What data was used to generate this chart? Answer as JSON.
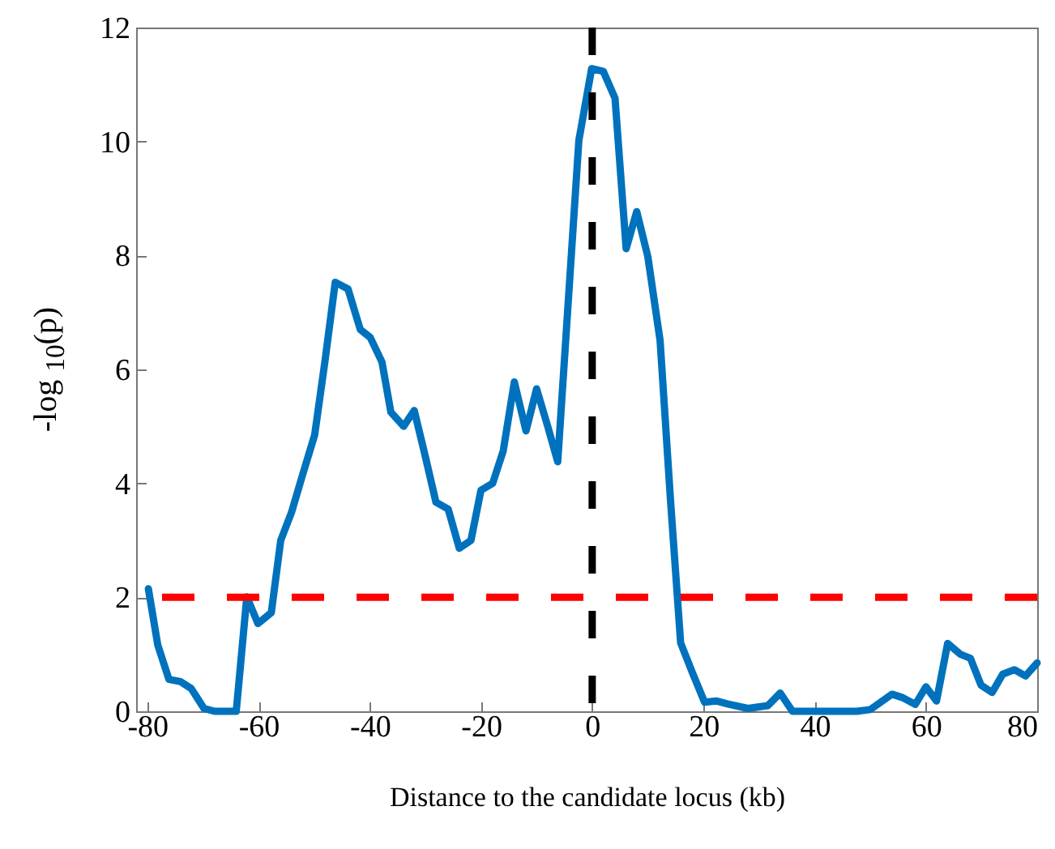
{
  "chart_data": {
    "type": "line",
    "xlabel": "Distance to the candidate locus (kb)",
    "ylabel": "-log $_{10}$(p)",
    "xlim": [
      -82,
      80
    ],
    "xticks": [
      -80,
      -60,
      -40,
      -20,
      0,
      20,
      40,
      60,
      80
    ],
    "ylim": [
      0,
      12
    ],
    "yticks": [
      0,
      2,
      4,
      6,
      8,
      10,
      12
    ],
    "grid": false,
    "marker": "none",
    "line_style": "solid",
    "x": [
      -79.8,
      -78.1,
      -76.1,
      -74.0,
      -72.1,
      -69.8,
      -67.9,
      -64.0,
      -62.1,
      -60.1,
      -57.7,
      -56.0,
      -54.1,
      -52.1,
      -49.9,
      -48.0,
      -46.2,
      -43.9,
      -41.7,
      -39.9,
      -37.8,
      -36.2,
      -33.9,
      -32.0,
      -30.0,
      -28.1,
      -25.9,
      -23.9,
      -21.8,
      -20.0,
      -17.9,
      -16.0,
      -14.0,
      -11.9,
      -10.0,
      -8.0,
      -6.2,
      -2.4,
      -0.1,
      2.0,
      4.1,
      6.1,
      8.0,
      10.0,
      12.2,
      14.1,
      15.9,
      18.0,
      20.2,
      22.4,
      24.3,
      28.0,
      31.6,
      33.8,
      36.0,
      40.0,
      47.6,
      50.0,
      53.9,
      55.8,
      58.1,
      60.0,
      61.9,
      63.9,
      66.2,
      68.0,
      69.9,
      71.9,
      73.8,
      75.9,
      77.9,
      80.0
    ],
    "series": [
      {
        "color": "#0072bd",
        "values": [
          2.15,
          1.16,
          0.56,
          0.52,
          0.4,
          0.05,
          0.0,
          0.0,
          2.01,
          1.54,
          1.73,
          3.0,
          3.48,
          4.14,
          4.85,
          6.18,
          7.53,
          7.41,
          6.7,
          6.56,
          6.13,
          5.25,
          5.0,
          5.28,
          4.47,
          3.67,
          3.55,
          2.86,
          3.0,
          3.88,
          4.0,
          4.57,
          5.78,
          4.92,
          5.66,
          5.0,
          4.38,
          10.02,
          11.28,
          11.23,
          10.76,
          8.12,
          8.77,
          7.98,
          6.51,
          3.67,
          1.2,
          0.68,
          0.16,
          0.18,
          0.13,
          0.05,
          0.1,
          0.32,
          0.0,
          0.0,
          0.0,
          0.03,
          0.3,
          0.24,
          0.12,
          0.43,
          0.18,
          1.19,
          1.0,
          0.93,
          0.46,
          0.33,
          0.65,
          0.73,
          0.62,
          0.85
        ]
      }
    ],
    "ref_lines": [
      {
        "axis": "y",
        "value": 2,
        "color": "#ff0000",
        "line_style": "dashed"
      },
      {
        "axis": "x",
        "value": 0,
        "color": "#000000",
        "line_style": "dashed"
      }
    ]
  }
}
